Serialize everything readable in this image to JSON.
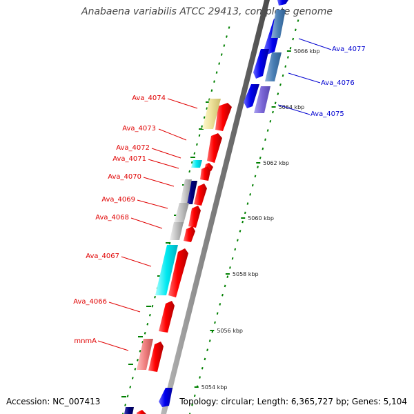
{
  "title": "Anabaena variabilis ATCC 29413, complete genome",
  "footer": {
    "accession": "Accession: NC_007413",
    "topology": "Topology: circular; Length: 6,365,727 bp; Genes: 5,104"
  },
  "ticks": [
    "5054 kbp",
    "5056 kbp",
    "5058 kbp",
    "5060 kbp",
    "5062 kbp",
    "5064 kbp",
    "5066 kbp"
  ],
  "genes_left": [
    "Ava_4074",
    "Ava_4073",
    "Ava_4072",
    "Ava_4071",
    "Ava_4070",
    "Ava_4069",
    "Ava_4068",
    "Ava_4067",
    "Ava_4066",
    "mnmA"
  ],
  "genes_right": [
    "Ava_4077",
    "Ava_4076",
    "Ava_4075"
  ],
  "colors": {
    "forward": "#ff0000",
    "reverse": "#0000ff",
    "tick": "#008000",
    "backbone": "#888888"
  }
}
